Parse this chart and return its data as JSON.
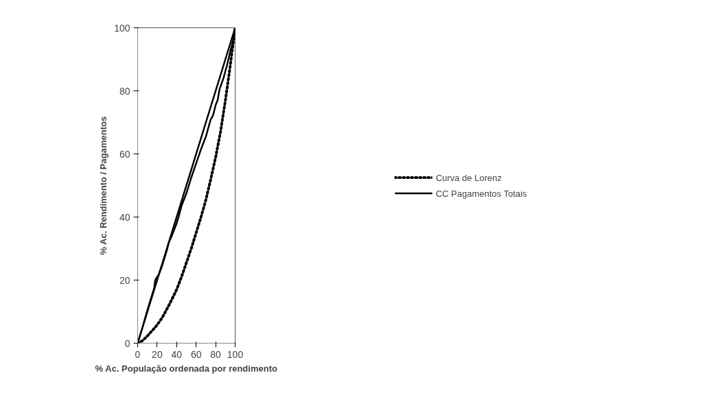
{
  "chart_data": {
    "type": "line",
    "xlabel": "% Ac. População ordenada por rendimento",
    "ylabel": "% Ac. Rendimento / Pagamentos",
    "xlim": [
      0,
      100
    ],
    "ylim": [
      0,
      100
    ],
    "xticks": [
      0,
      20,
      40,
      60,
      80,
      100
    ],
    "yticks": [
      0,
      20,
      40,
      60,
      80,
      100
    ],
    "grid": false,
    "legend": "right",
    "series": [
      {
        "name": "Curva de Lorenz",
        "color": "#000000",
        "line_style": "dotted",
        "x": [
          0,
          5,
          10,
          15,
          20,
          25,
          30,
          35,
          40,
          45,
          50,
          55,
          60,
          65,
          70,
          75,
          80,
          85,
          90,
          95,
          100
        ],
        "values": [
          0,
          0.8,
          2.3,
          4,
          5.8,
          8,
          10.8,
          13.8,
          17,
          21,
          25.5,
          30,
          35,
          40,
          45.5,
          52,
          59,
          67,
          77,
          88,
          100
        ]
      },
      {
        "name": "CC Pagamentos Totais",
        "color": "#000000",
        "line_style": "solid",
        "x": [
          0,
          5,
          10,
          15,
          17,
          18,
          20,
          22,
          25,
          30,
          32,
          35,
          40,
          42,
          45,
          50,
          55,
          60,
          65,
          70,
          75,
          77,
          78,
          80,
          82,
          84,
          88,
          92,
          95,
          98,
          100
        ],
        "values": [
          0,
          5,
          10.5,
          15.5,
          17.5,
          20,
          21,
          22,
          24.5,
          29.5,
          32,
          34,
          38,
          40,
          43.5,
          47.5,
          52.5,
          57,
          61.5,
          65.5,
          71,
          72,
          73,
          75.5,
          77,
          80.5,
          84,
          88.5,
          92.5,
          96,
          100
        ]
      },
      {
        "color": "#000000",
        "line_style": "solid",
        "x": [
          0,
          100
        ],
        "values": [
          0,
          100
        ]
      }
    ]
  }
}
